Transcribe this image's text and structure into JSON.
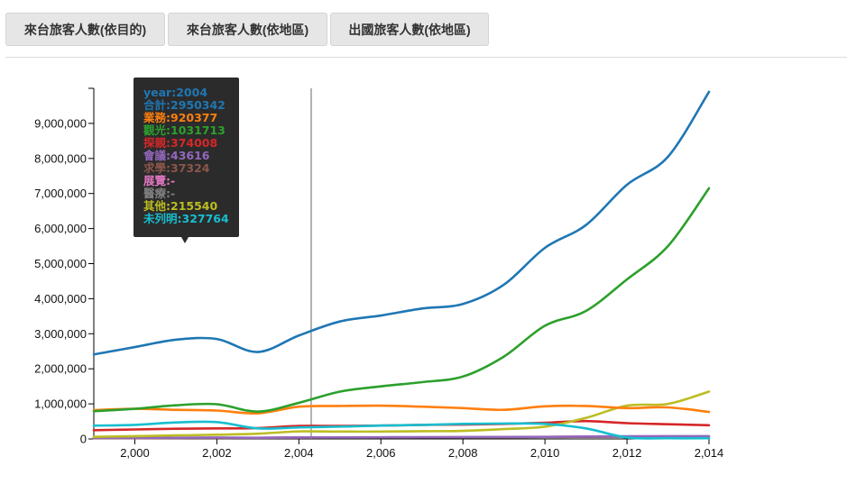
{
  "tabs": [
    {
      "label": "來台旅客人數(依目的)"
    },
    {
      "label": "來台旅客人數(依地區)"
    },
    {
      "label": "出國旅客人數(依地區)"
    }
  ],
  "tooltip": {
    "rows": [
      {
        "text": "year:2004",
        "color": "#1f77b4"
      },
      {
        "text": "合計:2950342",
        "color": "#1f77b4"
      },
      {
        "text": "業務:920377",
        "color": "#ff7f0e"
      },
      {
        "text": "觀光:1031713",
        "color": "#2ca02c"
      },
      {
        "text": "探親:374008",
        "color": "#d62728"
      },
      {
        "text": "會議:43616",
        "color": "#9467bd"
      },
      {
        "text": "求學:37324",
        "color": "#8c564b"
      },
      {
        "text": "展覽:-",
        "color": "#e377c2"
      },
      {
        "text": "醫療:-",
        "color": "#7f7f7f"
      },
      {
        "text": "其他:215540",
        "color": "#bcbd22"
      },
      {
        "text": "未列明:327764",
        "color": "#17becf"
      }
    ]
  },
  "chart_data": {
    "type": "line",
    "x": [
      1999,
      2000,
      2001,
      2002,
      2003,
      2004,
      2005,
      2006,
      2007,
      2008,
      2009,
      2010,
      2011,
      2012,
      2013,
      2014
    ],
    "xlim": [
      1999,
      2014
    ],
    "ylim": [
      0,
      10000000
    ],
    "xticks": [
      "2,000",
      "2,002",
      "2,004",
      "2,006",
      "2,008",
      "2,010",
      "2,012",
      "2,014"
    ],
    "xtick_values": [
      2000,
      2002,
      2004,
      2006,
      2008,
      2010,
      2012,
      2014
    ],
    "yticks": [
      "0",
      "1,000,000",
      "2,000,000",
      "3,000,000",
      "4,000,000",
      "5,000,000",
      "6,000,000",
      "7,000,000",
      "8,000,000",
      "9,000,000"
    ],
    "ytick_values": [
      0,
      1000000,
      2000000,
      3000000,
      4000000,
      5000000,
      6000000,
      7000000,
      8000000,
      9000000
    ],
    "hover_x": 2004.3,
    "series": [
      {
        "name": "合計",
        "color": "#1f77b4",
        "values": [
          2410000,
          2620000,
          2830000,
          2850000,
          2480000,
          2950000,
          3350000,
          3520000,
          3720000,
          3850000,
          4400000,
          5450000,
          6100000,
          7250000,
          8050000,
          9900000
        ]
      },
      {
        "name": "業務",
        "color": "#ff7f0e",
        "values": [
          820000,
          860000,
          830000,
          810000,
          730000,
          920000,
          940000,
          950000,
          920000,
          880000,
          830000,
          930000,
          940000,
          880000,
          900000,
          770000
        ]
      },
      {
        "name": "觀光",
        "color": "#2ca02c",
        "values": [
          790000,
          860000,
          960000,
          990000,
          780000,
          1030000,
          1350000,
          1500000,
          1620000,
          1780000,
          2350000,
          3230000,
          3650000,
          4550000,
          5500000,
          7150000
        ]
      },
      {
        "name": "探親",
        "color": "#d62728",
        "values": [
          250000,
          270000,
          290000,
          300000,
          310000,
          370000,
          370000,
          380000,
          400000,
          410000,
          430000,
          460000,
          510000,
          450000,
          420000,
          390000
        ]
      },
      {
        "name": "會議",
        "color": "#9467bd",
        "values": [
          30000,
          30000,
          35000,
          40000,
          35000,
          44000,
          45000,
          48000,
          50000,
          52000,
          55000,
          60000,
          70000,
          75000,
          78000,
          80000
        ]
      },
      {
        "name": "求學",
        "color": "#8c564b",
        "values": [
          20000,
          22000,
          25000,
          28000,
          30000,
          37000,
          40000,
          42000,
          45000,
          48000,
          50000,
          55000,
          60000,
          62000,
          65000,
          70000
        ]
      },
      {
        "name": "其他",
        "color": "#bcbd22",
        "values": [
          60000,
          80000,
          100000,
          120000,
          150000,
          215000,
          210000,
          210000,
          220000,
          230000,
          280000,
          350000,
          600000,
          950000,
          1000000,
          1350000
        ]
      },
      {
        "name": "未列明",
        "color": "#17becf",
        "values": [
          380000,
          400000,
          470000,
          480000,
          300000,
          328000,
          350000,
          380000,
          400000,
          430000,
          440000,
          430000,
          300000,
          40000,
          20000,
          20000
        ]
      }
    ]
  }
}
